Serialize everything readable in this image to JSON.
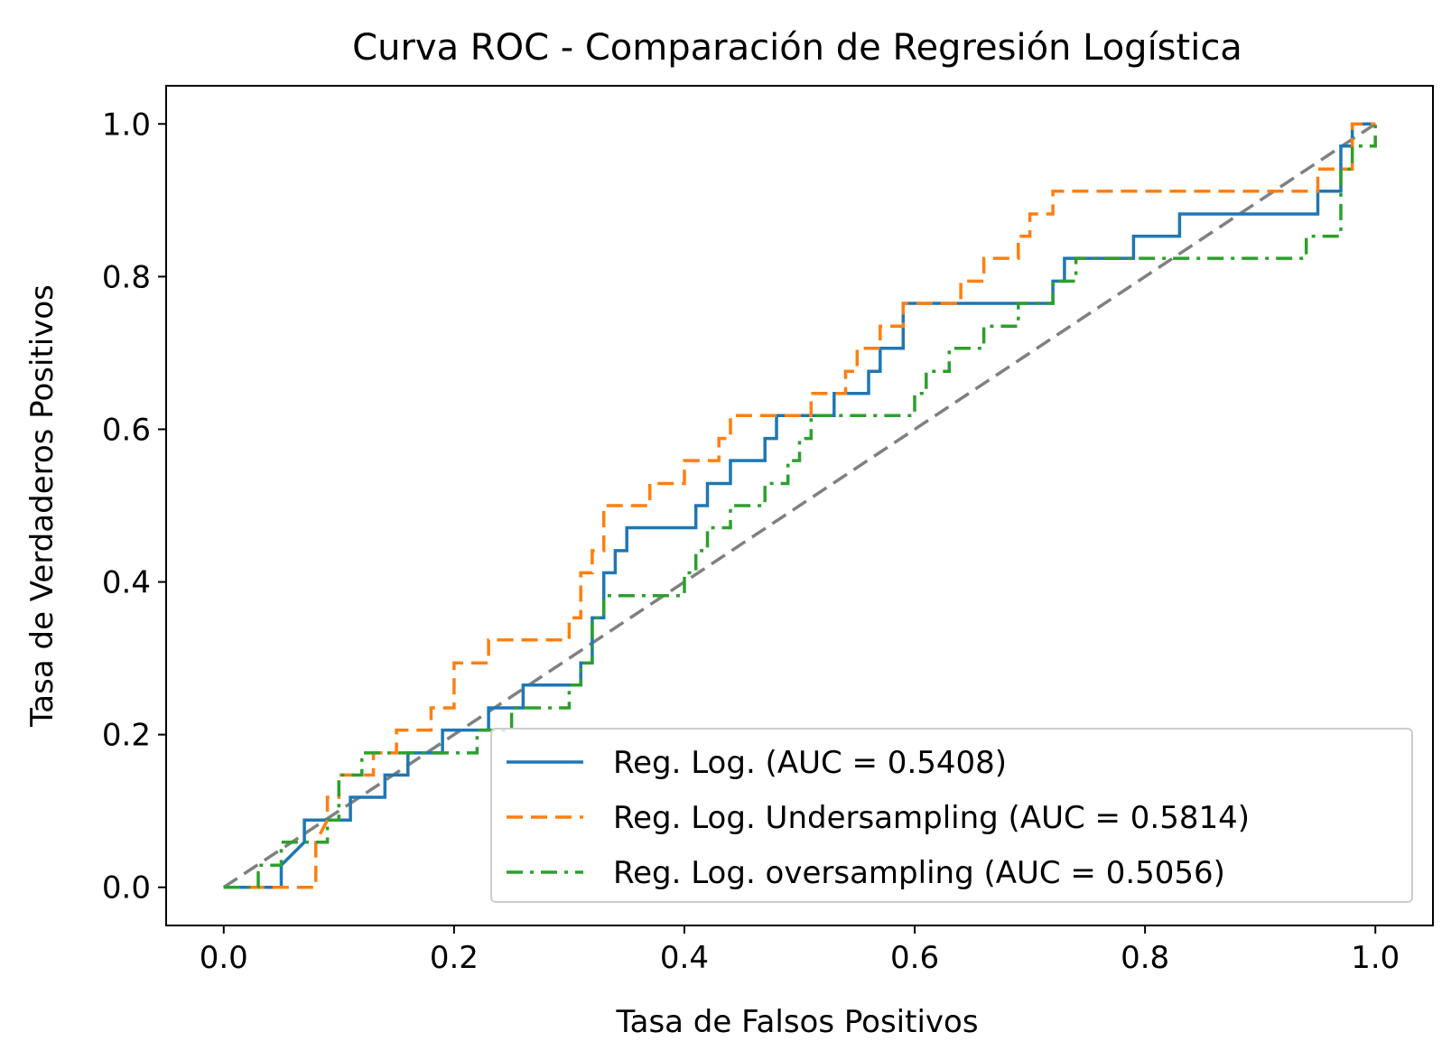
{
  "chart_data": {
    "type": "line",
    "title": "Curva ROC - Comparación de Regresión Logística",
    "xlabel": "Tasa de Falsos Positivos",
    "ylabel": "Tasa de Verdaderos Positivos",
    "xlim": [
      -0.05,
      1.05
    ],
    "ylim": [
      -0.05,
      1.05
    ],
    "xticks": [
      "0.0",
      "0.2",
      "0.4",
      "0.6",
      "0.8",
      "1.0"
    ],
    "yticks": [
      "0.0",
      "0.2",
      "0.4",
      "0.6",
      "0.8",
      "1.0"
    ],
    "grid": false,
    "legend_position": "lower-right",
    "diagonal": {
      "x": [
        0,
        1
      ],
      "y": [
        0,
        1
      ],
      "color": "#808080",
      "style": "dashed"
    },
    "series": [
      {
        "name": "Reg. Log. (AUC = 0.5408)",
        "color": "#1f77b4",
        "style": "solid",
        "points": [
          [
            0,
            0
          ],
          [
            0.05,
            0
          ],
          [
            0.05,
            0.029
          ],
          [
            0.07,
            0.059
          ],
          [
            0.07,
            0.088
          ],
          [
            0.11,
            0.088
          ],
          [
            0.11,
            0.118
          ],
          [
            0.14,
            0.118
          ],
          [
            0.14,
            0.147
          ],
          [
            0.16,
            0.147
          ],
          [
            0.16,
            0.176
          ],
          [
            0.19,
            0.176
          ],
          [
            0.19,
            0.206
          ],
          [
            0.23,
            0.206
          ],
          [
            0.23,
            0.235
          ],
          [
            0.26,
            0.235
          ],
          [
            0.26,
            0.265
          ],
          [
            0.31,
            0.265
          ],
          [
            0.31,
            0.294
          ],
          [
            0.32,
            0.294
          ],
          [
            0.32,
            0.353
          ],
          [
            0.33,
            0.353
          ],
          [
            0.33,
            0.412
          ],
          [
            0.34,
            0.412
          ],
          [
            0.34,
            0.441
          ],
          [
            0.35,
            0.441
          ],
          [
            0.35,
            0.471
          ],
          [
            0.41,
            0.471
          ],
          [
            0.41,
            0.5
          ],
          [
            0.42,
            0.5
          ],
          [
            0.42,
            0.529
          ],
          [
            0.44,
            0.529
          ],
          [
            0.44,
            0.559
          ],
          [
            0.47,
            0.559
          ],
          [
            0.47,
            0.588
          ],
          [
            0.48,
            0.588
          ],
          [
            0.48,
            0.618
          ],
          [
            0.53,
            0.618
          ],
          [
            0.53,
            0.647
          ],
          [
            0.56,
            0.647
          ],
          [
            0.56,
            0.676
          ],
          [
            0.57,
            0.676
          ],
          [
            0.57,
            0.706
          ],
          [
            0.59,
            0.706
          ],
          [
            0.59,
            0.765
          ],
          [
            0.72,
            0.765
          ],
          [
            0.72,
            0.794
          ],
          [
            0.73,
            0.794
          ],
          [
            0.73,
            0.824
          ],
          [
            0.79,
            0.824
          ],
          [
            0.79,
            0.853
          ],
          [
            0.83,
            0.853
          ],
          [
            0.83,
            0.882
          ],
          [
            0.95,
            0.882
          ],
          [
            0.95,
            0.912
          ],
          [
            0.97,
            0.912
          ],
          [
            0.97,
            0.971
          ],
          [
            0.98,
            0.971
          ],
          [
            0.98,
            1.0
          ],
          [
            1.0,
            1.0
          ]
        ]
      },
      {
        "name": "Reg. Log. Undersampling (AUC = 0.5814)",
        "color": "#ff7f0e",
        "style": "dashed",
        "points": [
          [
            0,
            0
          ],
          [
            0.07,
            0
          ],
          [
            0.08,
            0
          ],
          [
            0.08,
            0.059
          ],
          [
            0.09,
            0.088
          ],
          [
            0.09,
            0.118
          ],
          [
            0.1,
            0.118
          ],
          [
            0.1,
            0.147
          ],
          [
            0.13,
            0.147
          ],
          [
            0.13,
            0.176
          ],
          [
            0.15,
            0.176
          ],
          [
            0.15,
            0.206
          ],
          [
            0.18,
            0.206
          ],
          [
            0.18,
            0.235
          ],
          [
            0.2,
            0.235
          ],
          [
            0.2,
            0.265
          ],
          [
            0.2,
            0.294
          ],
          [
            0.23,
            0.294
          ],
          [
            0.23,
            0.324
          ],
          [
            0.3,
            0.324
          ],
          [
            0.3,
            0.353
          ],
          [
            0.31,
            0.353
          ],
          [
            0.31,
            0.412
          ],
          [
            0.32,
            0.412
          ],
          [
            0.32,
            0.441
          ],
          [
            0.33,
            0.441
          ],
          [
            0.33,
            0.5
          ],
          [
            0.37,
            0.5
          ],
          [
            0.37,
            0.529
          ],
          [
            0.4,
            0.529
          ],
          [
            0.4,
            0.559
          ],
          [
            0.43,
            0.559
          ],
          [
            0.43,
            0.588
          ],
          [
            0.44,
            0.588
          ],
          [
            0.44,
            0.618
          ],
          [
            0.51,
            0.618
          ],
          [
            0.51,
            0.647
          ],
          [
            0.54,
            0.647
          ],
          [
            0.54,
            0.676
          ],
          [
            0.55,
            0.676
          ],
          [
            0.55,
            0.706
          ],
          [
            0.57,
            0.706
          ],
          [
            0.57,
            0.735
          ],
          [
            0.59,
            0.735
          ],
          [
            0.59,
            0.765
          ],
          [
            0.64,
            0.765
          ],
          [
            0.64,
            0.794
          ],
          [
            0.66,
            0.794
          ],
          [
            0.66,
            0.824
          ],
          [
            0.69,
            0.824
          ],
          [
            0.69,
            0.853
          ],
          [
            0.7,
            0.853
          ],
          [
            0.7,
            0.882
          ],
          [
            0.72,
            0.882
          ],
          [
            0.72,
            0.912
          ],
          [
            0.95,
            0.912
          ],
          [
            0.95,
            0.941
          ],
          [
            0.98,
            0.941
          ],
          [
            0.98,
            0.971
          ],
          [
            0.98,
            1.0
          ],
          [
            1.0,
            1.0
          ]
        ]
      },
      {
        "name": "Reg. Log. oversampling (AUC = 0.5056)",
        "color": "#2ca02c",
        "style": "dashdot",
        "points": [
          [
            0,
            0
          ],
          [
            0.03,
            0
          ],
          [
            0.03,
            0.029
          ],
          [
            0.05,
            0.029
          ],
          [
            0.05,
            0.059
          ],
          [
            0.09,
            0.059
          ],
          [
            0.09,
            0.088
          ],
          [
            0.1,
            0.088
          ],
          [
            0.1,
            0.118
          ],
          [
            0.1,
            0.147
          ],
          [
            0.12,
            0.147
          ],
          [
            0.12,
            0.176
          ],
          [
            0.22,
            0.176
          ],
          [
            0.22,
            0.206
          ],
          [
            0.25,
            0.206
          ],
          [
            0.25,
            0.235
          ],
          [
            0.3,
            0.235
          ],
          [
            0.3,
            0.265
          ],
          [
            0.31,
            0.265
          ],
          [
            0.31,
            0.294
          ],
          [
            0.32,
            0.294
          ],
          [
            0.32,
            0.324
          ],
          [
            0.32,
            0.353
          ],
          [
            0.33,
            0.353
          ],
          [
            0.33,
            0.382
          ],
          [
            0.4,
            0.382
          ],
          [
            0.4,
            0.412
          ],
          [
            0.41,
            0.412
          ],
          [
            0.41,
            0.441
          ],
          [
            0.42,
            0.441
          ],
          [
            0.42,
            0.471
          ],
          [
            0.44,
            0.471
          ],
          [
            0.44,
            0.5
          ],
          [
            0.47,
            0.5
          ],
          [
            0.47,
            0.529
          ],
          [
            0.49,
            0.529
          ],
          [
            0.49,
            0.559
          ],
          [
            0.5,
            0.559
          ],
          [
            0.5,
            0.588
          ],
          [
            0.51,
            0.588
          ],
          [
            0.51,
            0.618
          ],
          [
            0.6,
            0.618
          ],
          [
            0.6,
            0.647
          ],
          [
            0.61,
            0.647
          ],
          [
            0.61,
            0.676
          ],
          [
            0.63,
            0.676
          ],
          [
            0.63,
            0.706
          ],
          [
            0.66,
            0.706
          ],
          [
            0.66,
            0.735
          ],
          [
            0.69,
            0.735
          ],
          [
            0.69,
            0.765
          ],
          [
            0.72,
            0.765
          ],
          [
            0.72,
            0.794
          ],
          [
            0.74,
            0.794
          ],
          [
            0.74,
            0.824
          ],
          [
            0.94,
            0.824
          ],
          [
            0.94,
            0.853
          ],
          [
            0.97,
            0.853
          ],
          [
            0.97,
            0.912
          ],
          [
            0.97,
            0.941
          ],
          [
            0.98,
            0.941
          ],
          [
            0.98,
            0.971
          ],
          [
            1.0,
            0.971
          ],
          [
            1.0,
            1.0
          ]
        ]
      }
    ]
  }
}
